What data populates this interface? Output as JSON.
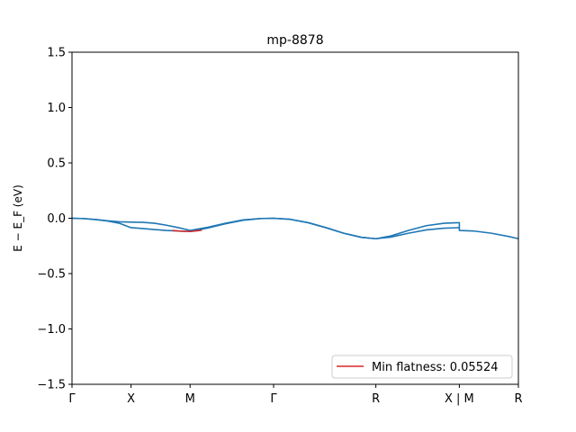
{
  "chart_data": {
    "type": "line",
    "title": "mp-8878",
    "ylabel": "E − E_F (eV)",
    "ylim": [
      -1.5,
      1.5
    ],
    "yticks": [
      {
        "value": 1.5,
        "label": "1.5"
      },
      {
        "value": 1.0,
        "label": "1.0"
      },
      {
        "value": 0.5,
        "label": "0.5"
      },
      {
        "value": 0.0,
        "label": "0.0"
      },
      {
        "value": -0.5,
        "label": "−0.5"
      },
      {
        "value": -1.0,
        "label": "−1.0"
      },
      {
        "value": -1.5,
        "label": "−1.5"
      }
    ],
    "kpath": [
      {
        "label": "Γ",
        "x": 0.0
      },
      {
        "label": "X",
        "x": 0.5
      },
      {
        "label": "M",
        "x": 1.0
      },
      {
        "label": "Γ",
        "x": 1.707
      },
      {
        "label": "R",
        "x": 2.573
      },
      {
        "label": "X | M",
        "x": 3.28
      },
      {
        "label": "R",
        "x": 3.78
      }
    ],
    "grid": false,
    "legend_position": "lower-right",
    "legend": [
      {
        "label": "Min flatness: 0.05524",
        "color": "#d62728"
      }
    ],
    "series": [
      {
        "color": "#1f77b4",
        "x": [
          0.0,
          0.1,
          0.2,
          0.3,
          0.4,
          0.5,
          0.6,
          0.7,
          0.8,
          0.9,
          1.0,
          1.15,
          1.3,
          1.45,
          1.6,
          1.707,
          1.85,
          2.0,
          2.15,
          2.3,
          2.45,
          2.573,
          2.7,
          2.85,
          3.0,
          3.15,
          3.28,
          3.28,
          3.4,
          3.55,
          3.7,
          3.78
        ],
        "values": [
          0.0,
          -0.003,
          -0.012,
          -0.023,
          -0.032,
          -0.035,
          -0.037,
          -0.045,
          -0.063,
          -0.085,
          -0.11,
          -0.082,
          -0.045,
          -0.015,
          -0.002,
          0.0,
          -0.01,
          -0.04,
          -0.085,
          -0.135,
          -0.172,
          -0.185,
          -0.16,
          -0.11,
          -0.067,
          -0.045,
          -0.04,
          -0.11,
          -0.115,
          -0.135,
          -0.165,
          -0.185
        ]
      },
      {
        "color": "#1f77b4",
        "x": [
          0.0,
          0.1,
          0.2,
          0.3,
          0.4,
          0.5,
          0.6,
          0.7,
          0.8,
          0.9,
          1.0,
          1.15,
          1.3,
          1.45,
          1.6,
          1.707,
          1.85,
          2.0,
          2.15,
          2.3,
          2.45,
          2.573,
          2.7,
          2.85,
          3.0,
          3.15,
          3.28
        ],
        "values": [
          0.0,
          -0.003,
          -0.012,
          -0.025,
          -0.045,
          -0.085,
          -0.093,
          -0.102,
          -0.11,
          -0.115,
          -0.12,
          -0.088,
          -0.05,
          -0.018,
          -0.003,
          0.0,
          -0.01,
          -0.04,
          -0.085,
          -0.135,
          -0.172,
          -0.185,
          -0.17,
          -0.135,
          -0.105,
          -0.09,
          -0.085
        ]
      },
      {
        "color": "#d62728",
        "x": [
          0.85,
          0.9,
          0.95,
          1.0,
          1.05,
          1.1
        ],
        "values": [
          -0.11,
          -0.115,
          -0.118,
          -0.12,
          -0.115,
          -0.107
        ]
      }
    ]
  }
}
